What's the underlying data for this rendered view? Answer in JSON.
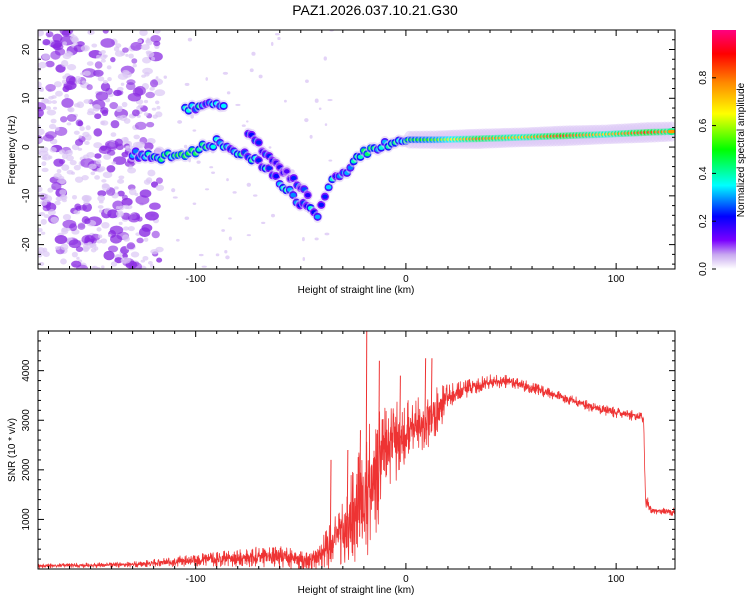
{
  "figure_title": "PAZ1.2026.037.10.21.G30",
  "colors": {
    "snr_line": "#ee3333",
    "frame": "#000000",
    "spectrogram_blob_dominant": "#8a2be2",
    "spectrogram_blob_faint": "#dcc8f5",
    "colormap": [
      "#ffffff",
      "#c8a8f0",
      "#7a00ff",
      "#0000ff",
      "#00ffff",
      "#00ff00",
      "#ffff00",
      "#ff8800",
      "#ff0000",
      "#ff0080"
    ]
  },
  "chart_data": [
    {
      "type": "heatmap",
      "name": "spectrogram",
      "title": "",
      "xlabel": "Height of straight line (km)",
      "ylabel": "Frequency (Hz)",
      "xlim": [
        -175,
        128
      ],
      "ylim": [
        -25,
        24
      ],
      "xticks": [
        -100,
        0,
        100
      ],
      "xtick_labels": [
        "-100",
        "0",
        "100"
      ],
      "yticks": [
        -20,
        -10,
        0,
        10,
        20
      ],
      "ytick_labels": [
        "-20",
        "-10",
        "0",
        "10",
        "20"
      ],
      "colorbar": {
        "label": "Normalized spectral amplitude",
        "range": [
          0.0,
          1.0
        ],
        "ticks": [
          0.0,
          0.2,
          0.4,
          0.6,
          0.8
        ],
        "tick_labels": [
          "0.0",
          "0.2",
          "0.4",
          "0.6",
          "0.8"
        ]
      },
      "ridges": [
        {
          "name": "main-doppler-track",
          "points": [
            {
              "x": -130,
              "y": -1.5,
              "amp": 0.3
            },
            {
              "x": -118,
              "y": -2.0,
              "amp": 0.35
            },
            {
              "x": -105,
              "y": -1.5,
              "amp": 0.4
            },
            {
              "x": -90,
              "y": 1.0,
              "amp": 0.3
            },
            {
              "x": -80,
              "y": -1.0,
              "amp": 0.35
            },
            {
              "x": -70,
              "y": -3.0,
              "amp": 0.3
            },
            {
              "x": -60,
              "y": -7.0,
              "amp": 0.3
            },
            {
              "x": -52,
              "y": -11.0,
              "amp": 0.3
            },
            {
              "x": -42,
              "y": -14.0,
              "amp": 0.3
            },
            {
              "x": -35,
              "y": -7.0,
              "amp": 0.3
            },
            {
              "x": -28,
              "y": -5.0,
              "amp": 0.3
            },
            {
              "x": -20,
              "y": -1.0,
              "amp": 0.35
            },
            {
              "x": -10,
              "y": 0.5,
              "amp": 0.4
            },
            {
              "x": 0,
              "y": 1.5,
              "amp": 0.45
            },
            {
              "x": 15,
              "y": 1.5,
              "amp": 0.55
            },
            {
              "x": 35,
              "y": 1.7,
              "amp": 0.8
            },
            {
              "x": 55,
              "y": 2.0,
              "amp": 0.7
            },
            {
              "x": 75,
              "y": 2.3,
              "amp": 0.85
            },
            {
              "x": 95,
              "y": 2.6,
              "amp": 0.7
            },
            {
              "x": 115,
              "y": 3.0,
              "amp": 0.85
            },
            {
              "x": 128,
              "y": 3.2,
              "amp": 0.75
            }
          ]
        },
        {
          "name": "upper-branch",
          "points": [
            {
              "x": -105,
              "y": 8.0,
              "amp": 0.35
            },
            {
              "x": -95,
              "y": 8.5,
              "amp": 0.3
            },
            {
              "x": -85,
              "y": 8.0,
              "amp": 0.3
            }
          ]
        },
        {
          "name": "secondary-descent",
          "points": [
            {
              "x": -75,
              "y": 3.0,
              "amp": 0.2
            },
            {
              "x": -65,
              "y": -2.0,
              "amp": 0.2
            },
            {
              "x": -55,
              "y": -6.0,
              "amp": 0.2
            },
            {
              "x": -45,
              "y": -10.0,
              "amp": 0.2
            }
          ]
        }
      ]
    },
    {
      "type": "line",
      "name": "snr",
      "title": "",
      "xlabel": "Height of straight line (km)",
      "ylabel": "SNR (10 * v/v)",
      "xlim": [
        -175,
        128
      ],
      "ylim": [
        0,
        4800
      ],
      "xticks": [
        -100,
        0,
        100
      ],
      "xtick_labels": [
        "-100",
        "0",
        "100"
      ],
      "yticks": [
        1000,
        2000,
        3000,
        4000
      ],
      "ytick_labels": [
        "1000",
        "2000",
        "3000",
        "4000"
      ],
      "series": [
        {
          "name": "SNR",
          "color": "#ee3333",
          "envelope": [
            {
              "x": -175,
              "mean": 60,
              "spread": 60
            },
            {
              "x": -130,
              "mean": 90,
              "spread": 80
            },
            {
              "x": -100,
              "mean": 180,
              "spread": 180
            },
            {
              "x": -80,
              "mean": 220,
              "spread": 250
            },
            {
              "x": -60,
              "mean": 260,
              "spread": 350
            },
            {
              "x": -45,
              "mean": 140,
              "spread": 250
            },
            {
              "x": -35,
              "mean": 500,
              "spread": 700
            },
            {
              "x": -25,
              "mean": 1100,
              "spread": 1400
            },
            {
              "x": -18,
              "mean": 1600,
              "spread": 2000
            },
            {
              "x": -10,
              "mean": 2300,
              "spread": 1500
            },
            {
              "x": 0,
              "mean": 2800,
              "spread": 900
            },
            {
              "x": 10,
              "mean": 3000,
              "spread": 900
            },
            {
              "x": 20,
              "mean": 3400,
              "spread": 500
            },
            {
              "x": 30,
              "mean": 3650,
              "spread": 250
            },
            {
              "x": 40,
              "mean": 3780,
              "spread": 200
            },
            {
              "x": 50,
              "mean": 3780,
              "spread": 180
            },
            {
              "x": 60,
              "mean": 3650,
              "spread": 160
            },
            {
              "x": 70,
              "mean": 3520,
              "spread": 150
            },
            {
              "x": 80,
              "mean": 3380,
              "spread": 150
            },
            {
              "x": 90,
              "mean": 3250,
              "spread": 150
            },
            {
              "x": 100,
              "mean": 3150,
              "spread": 150
            },
            {
              "x": 110,
              "mean": 3080,
              "spread": 150
            },
            {
              "x": 113,
              "mean": 3050,
              "spread": 150
            },
            {
              "x": 114,
              "mean": 1400,
              "spread": 200
            },
            {
              "x": 117,
              "mean": 1180,
              "spread": 130
            },
            {
              "x": 128,
              "mean": 1150,
              "spread": 120
            }
          ],
          "spikes": [
            {
              "x": -36,
              "y": 2200
            },
            {
              "x": -28,
              "y": 2400
            },
            {
              "x": -22,
              "y": 2800
            },
            {
              "x": -19,
              "y": 4850
            },
            {
              "x": -13,
              "y": 4200
            },
            {
              "x": -3,
              "y": 3900
            },
            {
              "x": 9,
              "y": 4250
            },
            {
              "x": 12,
              "y": 4250
            }
          ]
        }
      ]
    }
  ]
}
